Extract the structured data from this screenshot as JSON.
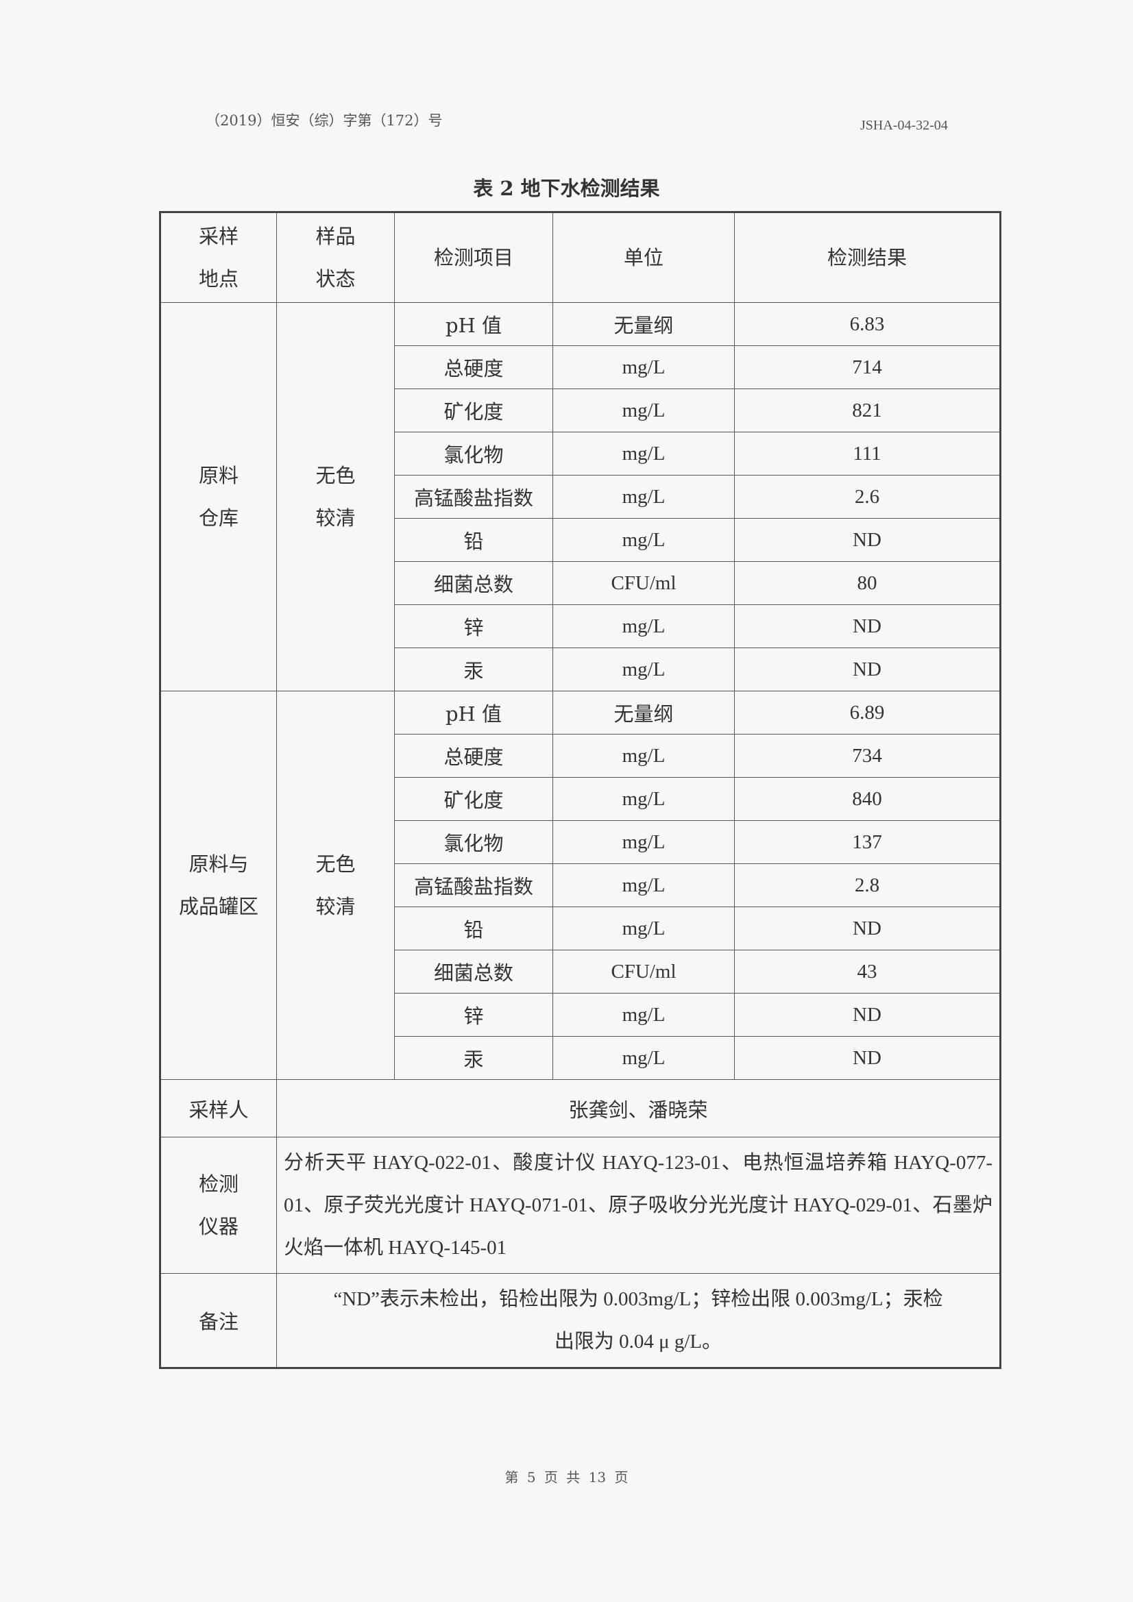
{
  "header": {
    "doc_number": "（2019）恒安（综）字第（172）号",
    "code": "JSHA-04-32-04"
  },
  "title": "表 2  地下水检测结果",
  "table": {
    "headers": {
      "location": [
        "采样",
        "地点"
      ],
      "state": [
        "样品",
        "状态"
      ],
      "item": "检测项目",
      "unit": "单位",
      "result": "检测结果"
    },
    "groups": [
      {
        "location": [
          "原料",
          "仓库"
        ],
        "state": [
          "无色",
          "较清"
        ],
        "rows": [
          {
            "item": "pH 值",
            "unit": "无量纲",
            "result": "6.83"
          },
          {
            "item": "总硬度",
            "unit": "mg/L",
            "result": "714"
          },
          {
            "item": "矿化度",
            "unit": "mg/L",
            "result": "821"
          },
          {
            "item": "氯化物",
            "unit": "mg/L",
            "result": "111"
          },
          {
            "item": "高锰酸盐指数",
            "unit": "mg/L",
            "result": "2.6"
          },
          {
            "item": "铅",
            "unit": "mg/L",
            "result": "ND"
          },
          {
            "item": "细菌总数",
            "unit": "CFU/ml",
            "result": "80"
          },
          {
            "item": "锌",
            "unit": "mg/L",
            "result": "ND"
          },
          {
            "item": "汞",
            "unit": "mg/L",
            "result": "ND"
          }
        ]
      },
      {
        "location": [
          "原料与",
          "成品罐区"
        ],
        "state": [
          "无色",
          "较清"
        ],
        "rows": [
          {
            "item": "pH 值",
            "unit": "无量纲",
            "result": "6.89"
          },
          {
            "item": "总硬度",
            "unit": "mg/L",
            "result": "734"
          },
          {
            "item": "矿化度",
            "unit": "mg/L",
            "result": "840"
          },
          {
            "item": "氯化物",
            "unit": "mg/L",
            "result": "137"
          },
          {
            "item": "高锰酸盐指数",
            "unit": "mg/L",
            "result": "2.8"
          },
          {
            "item": "铅",
            "unit": "mg/L",
            "result": "ND"
          },
          {
            "item": "细菌总数",
            "unit": "CFU/ml",
            "result": "43"
          },
          {
            "item": "锌",
            "unit": "mg/L",
            "result": "ND"
          },
          {
            "item": "汞",
            "unit": "mg/L",
            "result": "ND"
          }
        ]
      }
    ],
    "sampler": {
      "label": "采样人",
      "value": "张龚剑、潘晓荣"
    },
    "instruments": {
      "label": [
        "检测",
        "仪器"
      ],
      "value": "分析天平 HAYQ-022-01、酸度计仪 HAYQ-123-01、电热恒温培养箱 HAYQ-077-01、原子荧光光度计 HAYQ-071-01、原子吸收分光光度计 HAYQ-029-01、石墨炉火焰一体机 HAYQ-145-01"
    },
    "remarks": {
      "label": "备注",
      "value_line1": "“ND”表示未检出，铅检出限为 0.003mg/L；锌检出限 0.003mg/L；汞检",
      "value_line2": "出限为 0.04 μ g/L。"
    }
  },
  "footer": "第 5 页 共 13 页"
}
